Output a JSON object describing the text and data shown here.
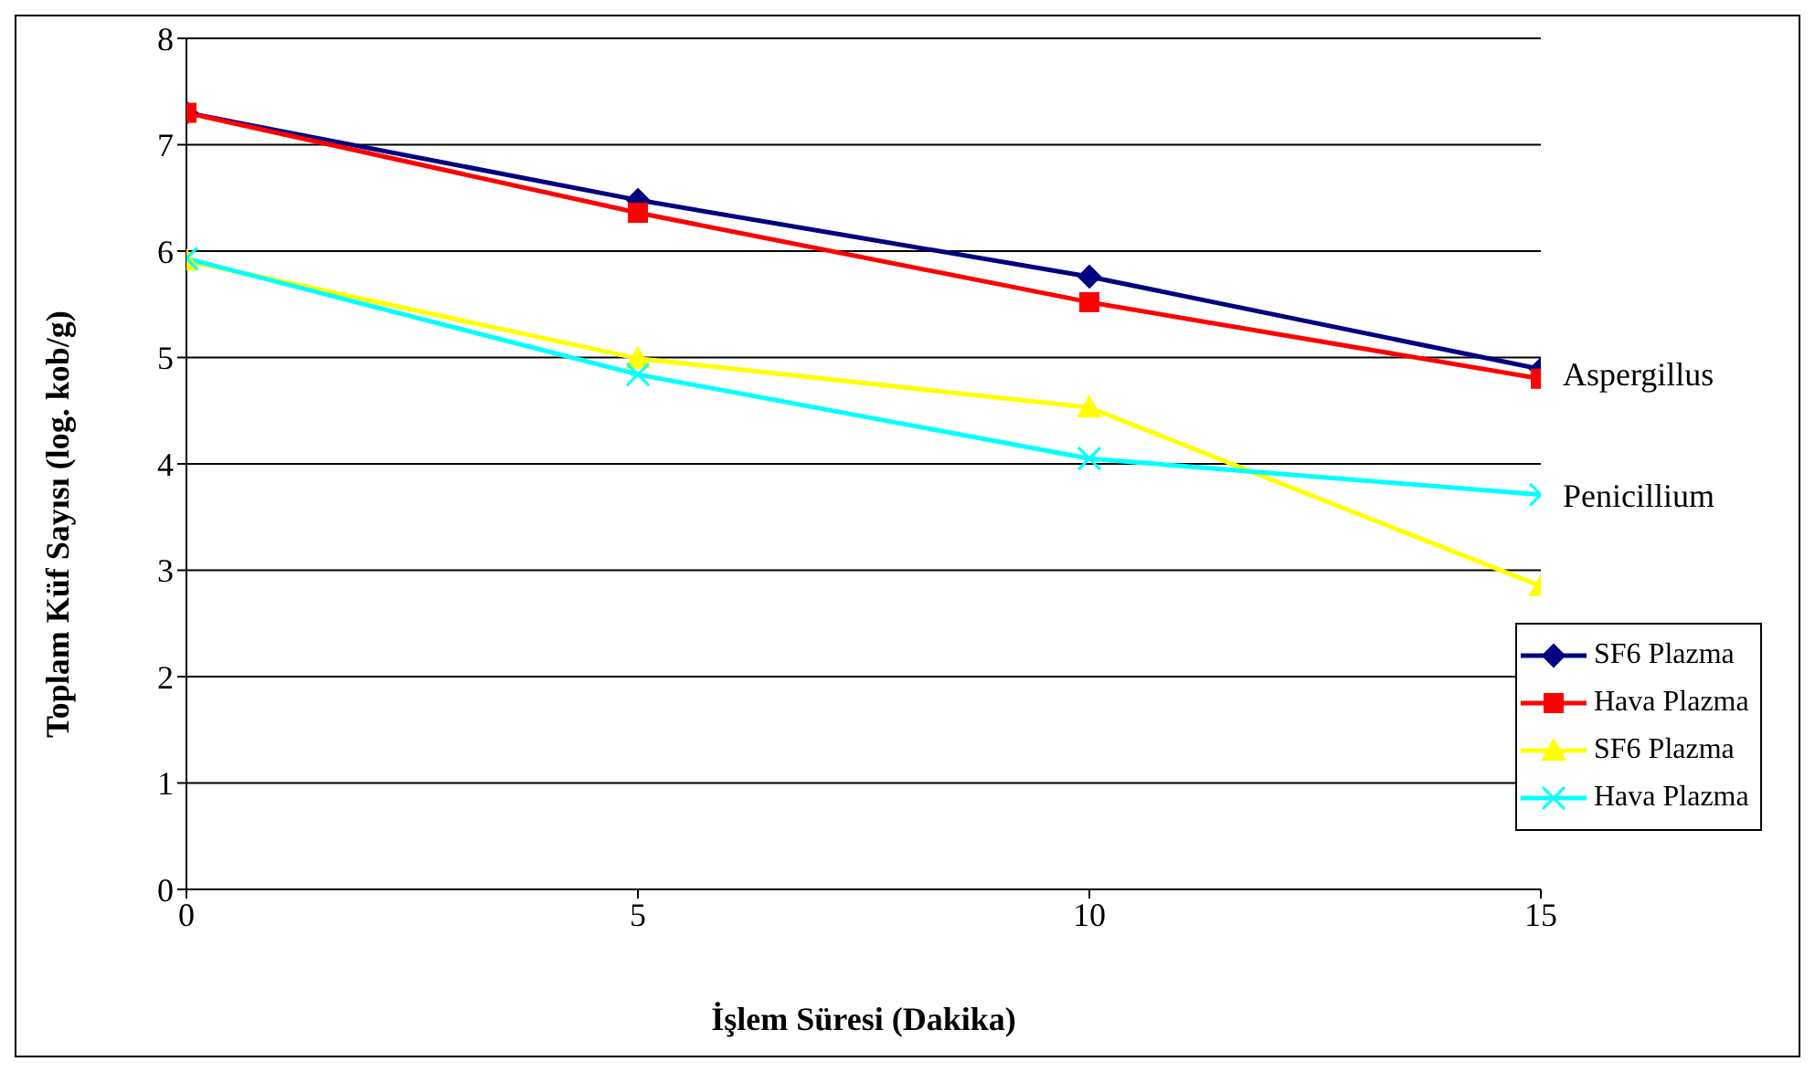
{
  "chart_data": {
    "type": "line",
    "xlabel": "İşlem Süresi (Dakika)",
    "ylabel": "Toplam Küf Sayısı (log. kob/g)",
    "x": [
      0,
      5,
      10,
      15
    ],
    "series": [
      {
        "name": "SF6 Plazma",
        "color": "#000080",
        "marker": "diamond",
        "values": [
          7.3,
          6.48,
          5.76,
          4.89
        ]
      },
      {
        "name": "Hava Plazma",
        "color": "#ff0000",
        "marker": "square",
        "values": [
          7.3,
          6.36,
          5.52,
          4.8
        ]
      },
      {
        "name": "SF6 Plazma",
        "color": "#ffff00",
        "marker": "triangle",
        "values": [
          5.91,
          4.99,
          4.53,
          2.85
        ]
      },
      {
        "name": "Hava Plazma",
        "color": "#00ffff",
        "marker": "cross",
        "values": [
          5.93,
          4.84,
          4.05,
          3.71
        ]
      }
    ],
    "annotations": [
      {
        "text": "Aspergillus",
        "x": 15,
        "y": 4.85
      },
      {
        "text": "Penicillium",
        "x": 15,
        "y": 3.71
      }
    ],
    "xlim": [
      0,
      15
    ],
    "xticks": [
      0,
      5,
      10,
      15
    ],
    "ylim": [
      0,
      8
    ],
    "yticks": [
      0,
      1,
      2,
      3,
      4,
      5,
      6,
      7,
      8
    ],
    "grid": "y",
    "legend": "bottom right"
  }
}
